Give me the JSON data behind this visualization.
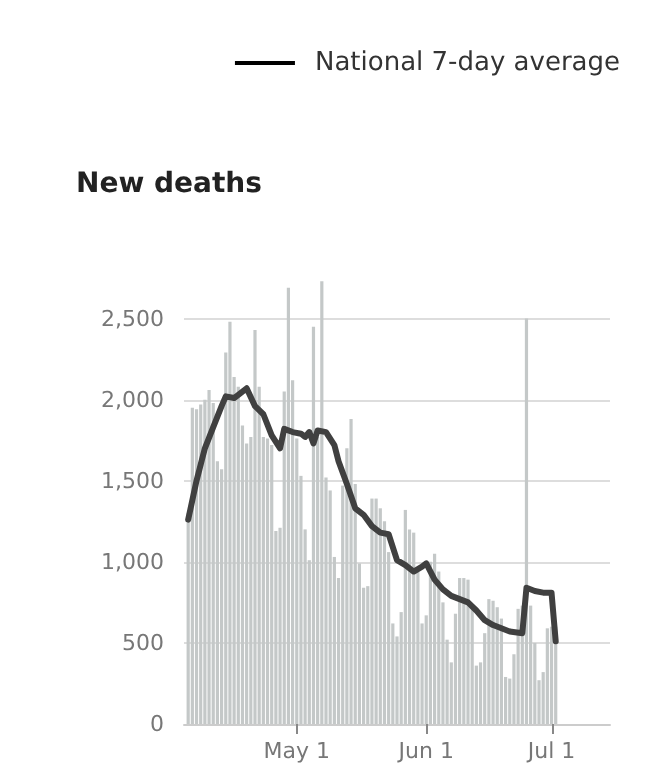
{
  "chart_data": {
    "type": "bar",
    "title": "New deaths",
    "legend": "top right",
    "grid": "y",
    "marker": "none",
    "line_style": "solid",
    "xlim": [
      "--04-04",
      "--07-15"
    ],
    "xticks": [
      {
        "value": "--05-01",
        "label": "May 1"
      },
      {
        "value": "--06-01",
        "label": "Jun 1"
      },
      {
        "value": "--07-01",
        "label": "Jul 1"
      }
    ],
    "ylim": [
      0,
      2750
    ],
    "yticks": [
      0,
      500,
      {
        "value": 1000,
        "label": "1,000"
      },
      {
        "value": 1500,
        "label": "1,500"
      },
      {
        "value": 2000,
        "label": "2,000"
      },
      {
        "value": 2500,
        "label": "2,500"
      }
    ],
    "series": [
      {
        "color": "#c4c8c8",
        "x": [
          "--04-05",
          "--04-06",
          "--04-07",
          "--04-08",
          "--04-09",
          "--04-10",
          "--04-11",
          "--04-12",
          "--04-13",
          "--04-14",
          "--04-15",
          "--04-16",
          "--04-17",
          "--04-18",
          "--04-19",
          "--04-20",
          "--04-21",
          "--04-22",
          "--04-23",
          "--04-24",
          "--04-25",
          "--04-26",
          "--04-27",
          "--04-28",
          "--04-29",
          "--04-30",
          "--05-01",
          "--05-02",
          "--05-03",
          "--05-04",
          "--05-05",
          "--05-06",
          "--05-07",
          "--05-08",
          "--05-09",
          "--05-10",
          "--05-11",
          "--05-12",
          "--05-13",
          "--05-14",
          "--05-15",
          "--05-16",
          "--05-17",
          "--05-18",
          "--05-19",
          "--05-20",
          "--05-21",
          "--05-22",
          "--05-23",
          "--05-24",
          "--05-25",
          "--05-26",
          "--05-27",
          "--05-28",
          "--05-29",
          "--05-30",
          "--05-31",
          "--06-01",
          "--06-02",
          "--06-03",
          "--06-04",
          "--06-05",
          "--06-06",
          "--06-07",
          "--06-08",
          "--06-09",
          "--06-10",
          "--06-11",
          "--06-12",
          "--06-13",
          "--06-14",
          "--06-15",
          "--06-16",
          "--06-17",
          "--06-18",
          "--06-19",
          "--06-20",
          "--06-21",
          "--06-22",
          "--06-23",
          "--06-24",
          "--06-25",
          "--06-26",
          "--06-27",
          "--06-28",
          "--06-29",
          "--06-30",
          "--07-01",
          "--07-02"
        ],
        "values": [
          1300,
          1950,
          1940,
          1970,
          2000,
          2060,
          1980,
          1620,
          1570,
          2290,
          2480,
          2140,
          2080,
          1840,
          1730,
          1770,
          2430,
          2080,
          1770,
          1760,
          1720,
          1190,
          1210,
          2050,
          2690,
          2120,
          1760,
          1530,
          1200,
          1010,
          2450,
          1770,
          2730,
          1520,
          1440,
          1030,
          900,
          1470,
          1700,
          1880,
          1480,
          990,
          840,
          850,
          1390,
          1390,
          1330,
          1250,
          1060,
          620,
          540,
          690,
          1320,
          1200,
          1180,
          940,
          620,
          670,
          1000,
          1050,
          940,
          750,
          520,
          380,
          680,
          900,
          900,
          890,
          720,
          360,
          380,
          560,
          770,
          760,
          720,
          650,
          290,
          280,
          430,
          710,
          730,
          2500,
          730,
          500,
          270,
          320,
          590,
          600,
          600
        ]
      },
      {
        "type": "line",
        "name": "National 7-day average",
        "color": "#404040",
        "x": [
          "--04-05",
          "--04-07",
          "--04-09",
          "--04-11",
          "--04-13",
          "--04-14",
          "--04-16",
          "--04-18",
          "--04-19",
          "--04-21",
          "--04-23",
          "--04-25",
          "--04-27",
          "--04-28",
          "--04-30",
          "--05-02",
          "--05-03",
          "--05-04",
          "--05-05",
          "--05-06",
          "--05-08",
          "--05-10",
          "--05-11",
          "--05-13",
          "--05-15",
          "--05-17",
          "--05-19",
          "--05-21",
          "--05-23",
          "--05-25",
          "--05-27",
          "--05-29",
          "--05-31",
          "--06-01",
          "--06-03",
          "--06-05",
          "--06-07",
          "--06-09",
          "--06-11",
          "--06-13",
          "--06-15",
          "--06-17",
          "--06-19",
          "--06-21",
          "--06-24",
          "--06-25",
          "--06-27",
          "--06-29",
          "--07-01",
          "--07-02"
        ],
        "values": [
          1260,
          1500,
          1700,
          1830,
          1960,
          2020,
          2010,
          2050,
          2070,
          1960,
          1910,
          1780,
          1700,
          1820,
          1800,
          1790,
          1770,
          1800,
          1730,
          1810,
          1800,
          1720,
          1620,
          1480,
          1330,
          1290,
          1220,
          1180,
          1170,
          1010,
          980,
          940,
          970,
          990,
          890,
          830,
          790,
          770,
          750,
          700,
          640,
          610,
          590,
          570,
          560,
          840,
          820,
          810,
          810,
          510
        ]
      }
    ]
  }
}
